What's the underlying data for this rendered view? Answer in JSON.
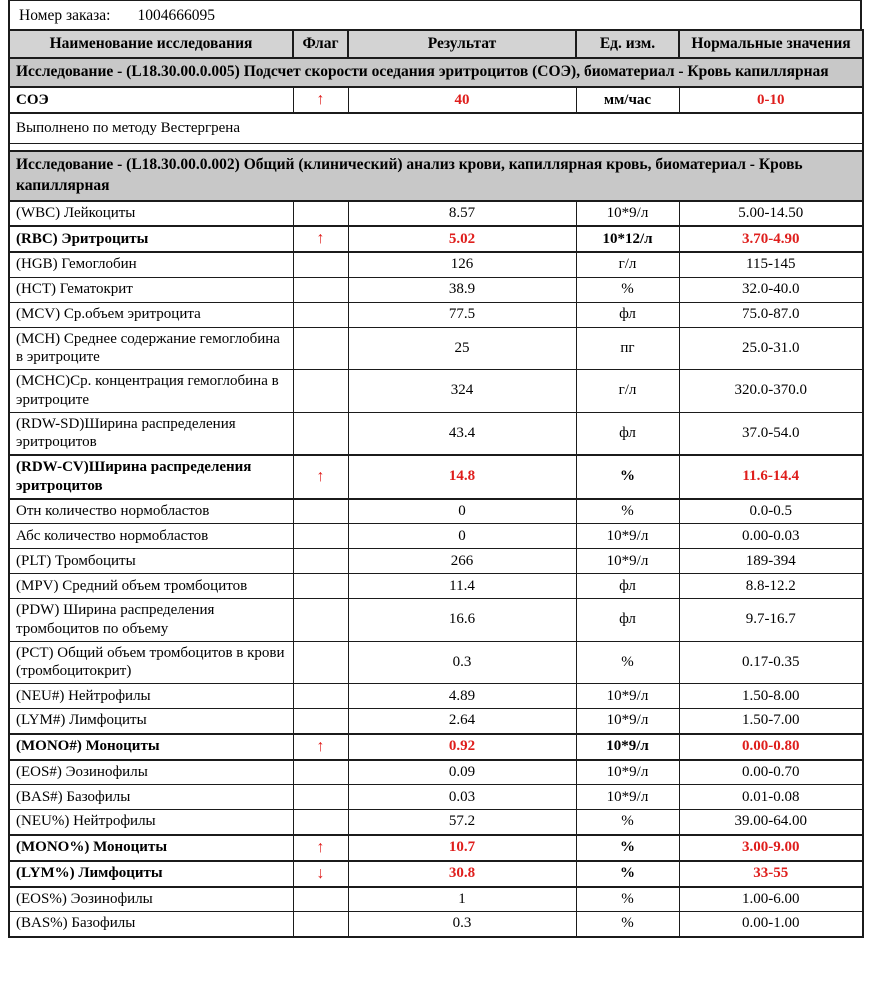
{
  "colors": {
    "accent_red": "#df1e1c",
    "header_bg": "#d3d3d3",
    "section_bg": "#c8c8c8",
    "border": "#1b1b1b"
  },
  "order": {
    "label": "Номер заказа:",
    "number": "1004666095"
  },
  "table": {
    "columns": [
      "Наименование исследования",
      "Флаг",
      "Результат",
      "Ед. изм.",
      "Нормальные значения"
    ],
    "sections": [
      {
        "title": "Исследование - (L18.30.00.0.005) Подсчет скорости оседания эритроцитов (СОЭ), биоматериал - Кровь капиллярная",
        "rows": [
          {
            "name": "СОЭ",
            "flag": "↑",
            "result": "40",
            "units": "мм/час",
            "normal": "0-10",
            "flagged": true
          }
        ],
        "note": "Выполнено по методу Вестергрена"
      },
      {
        "title": "Исследование - (L18.30.00.0.002) Общий (клинический) анализ крови, капиллярная кровь, биоматериал - Кровь капиллярная",
        "rows": [
          {
            "name": "(WBC) Лейкоциты",
            "flag": "",
            "result": "8.57",
            "units": "10*9/л",
            "normal": "5.00-14.50",
            "flagged": false
          },
          {
            "name": "(RBC) Эритроциты",
            "flag": "↑",
            "result": "5.02",
            "units": "10*12/л",
            "normal": "3.70-4.90",
            "flagged": true
          },
          {
            "name": "(HGB) Гемоглобин",
            "flag": "",
            "result": "126",
            "units": "г/л",
            "normal": "115-145",
            "flagged": false
          },
          {
            "name": "(HCT) Гематокрит",
            "flag": "",
            "result": "38.9",
            "units": "%",
            "normal": "32.0-40.0",
            "flagged": false
          },
          {
            "name": "(MCV) Ср.объем эритроцита",
            "flag": "",
            "result": "77.5",
            "units": "фл",
            "normal": "75.0-87.0",
            "flagged": false
          },
          {
            "name": "(MCH) Среднее содержание гемоглобина в эритроците",
            "flag": "",
            "result": "25",
            "units": "пг",
            "normal": "25.0-31.0",
            "flagged": false
          },
          {
            "name": "(MCHC)Ср. концентрация гемоглобина в эритроците",
            "flag": "",
            "result": "324",
            "units": "г/л",
            "normal": "320.0-370.0",
            "flagged": false
          },
          {
            "name": "(RDW-SD)Ширина распределения эритроцитов",
            "flag": "",
            "result": "43.4",
            "units": "фл",
            "normal": "37.0-54.0",
            "flagged": false
          },
          {
            "name": "(RDW-CV)Ширина распределения эритроцитов",
            "flag": "↑",
            "result": "14.8",
            "units": "%",
            "normal": "11.6-14.4",
            "flagged": true
          },
          {
            "name": "Отн количество нормобластов",
            "flag": "",
            "result": "0",
            "units": "%",
            "normal": "0.0-0.5",
            "flagged": false
          },
          {
            "name": "Абс количество нормобластов",
            "flag": "",
            "result": "0",
            "units": "10*9/л",
            "normal": "0.00-0.03",
            "flagged": false
          },
          {
            "name": "(PLT) Тромбоциты",
            "flag": "",
            "result": "266",
            "units": "10*9/л",
            "normal": "189-394",
            "flagged": false
          },
          {
            "name": "(MPV) Средний объем тромбоцитов",
            "flag": "",
            "result": "11.4",
            "units": "фл",
            "normal": "8.8-12.2",
            "flagged": false
          },
          {
            "name": "(PDW) Ширина распределения тромбоцитов по объему",
            "flag": "",
            "result": "16.6",
            "units": "фл",
            "normal": "9.7-16.7",
            "flagged": false
          },
          {
            "name": "(PCT) Общий объем тромбоцитов в крови (тромбоцитокрит)",
            "flag": "",
            "result": "0.3",
            "units": "%",
            "normal": "0.17-0.35",
            "flagged": false
          },
          {
            "name": "(NEU#) Нейтрофилы",
            "flag": "",
            "result": "4.89",
            "units": "10*9/л",
            "normal": "1.50-8.00",
            "flagged": false
          },
          {
            "name": "(LYM#) Лимфоциты",
            "flag": "",
            "result": "2.64",
            "units": "10*9/л",
            "normal": "1.50-7.00",
            "flagged": false
          },
          {
            "name": "(MONO#) Моноциты",
            "flag": "↑",
            "result": "0.92",
            "units": "10*9/л",
            "normal": "0.00-0.80",
            "flagged": true
          },
          {
            "name": "(EOS#) Эозинофилы",
            "flag": "",
            "result": "0.09",
            "units": "10*9/л",
            "normal": "0.00-0.70",
            "flagged": false
          },
          {
            "name": "(BAS#) Базофилы",
            "flag": "",
            "result": "0.03",
            "units": "10*9/л",
            "normal": "0.01-0.08",
            "flagged": false
          },
          {
            "name": "(NEU%) Нейтрофилы",
            "flag": "",
            "result": "57.2",
            "units": "%",
            "normal": "39.00-64.00",
            "flagged": false
          },
          {
            "name": "(MONO%) Моноциты",
            "flag": "↑",
            "result": "10.7",
            "units": "%",
            "normal": "3.00-9.00",
            "flagged": true
          },
          {
            "name": "(LYM%) Лимфоциты",
            "flag": "↓",
            "result": "30.8",
            "units": "%",
            "normal": "33-55",
            "flagged": true
          },
          {
            "name": "(EOS%) Эозинофилы",
            "flag": "",
            "result": "1",
            "units": "%",
            "normal": "1.00-6.00",
            "flagged": false
          },
          {
            "name": "(BAS%) Базофилы",
            "flag": "",
            "result": "0.3",
            "units": "%",
            "normal": "0.00-1.00",
            "flagged": false
          }
        ]
      }
    ]
  }
}
